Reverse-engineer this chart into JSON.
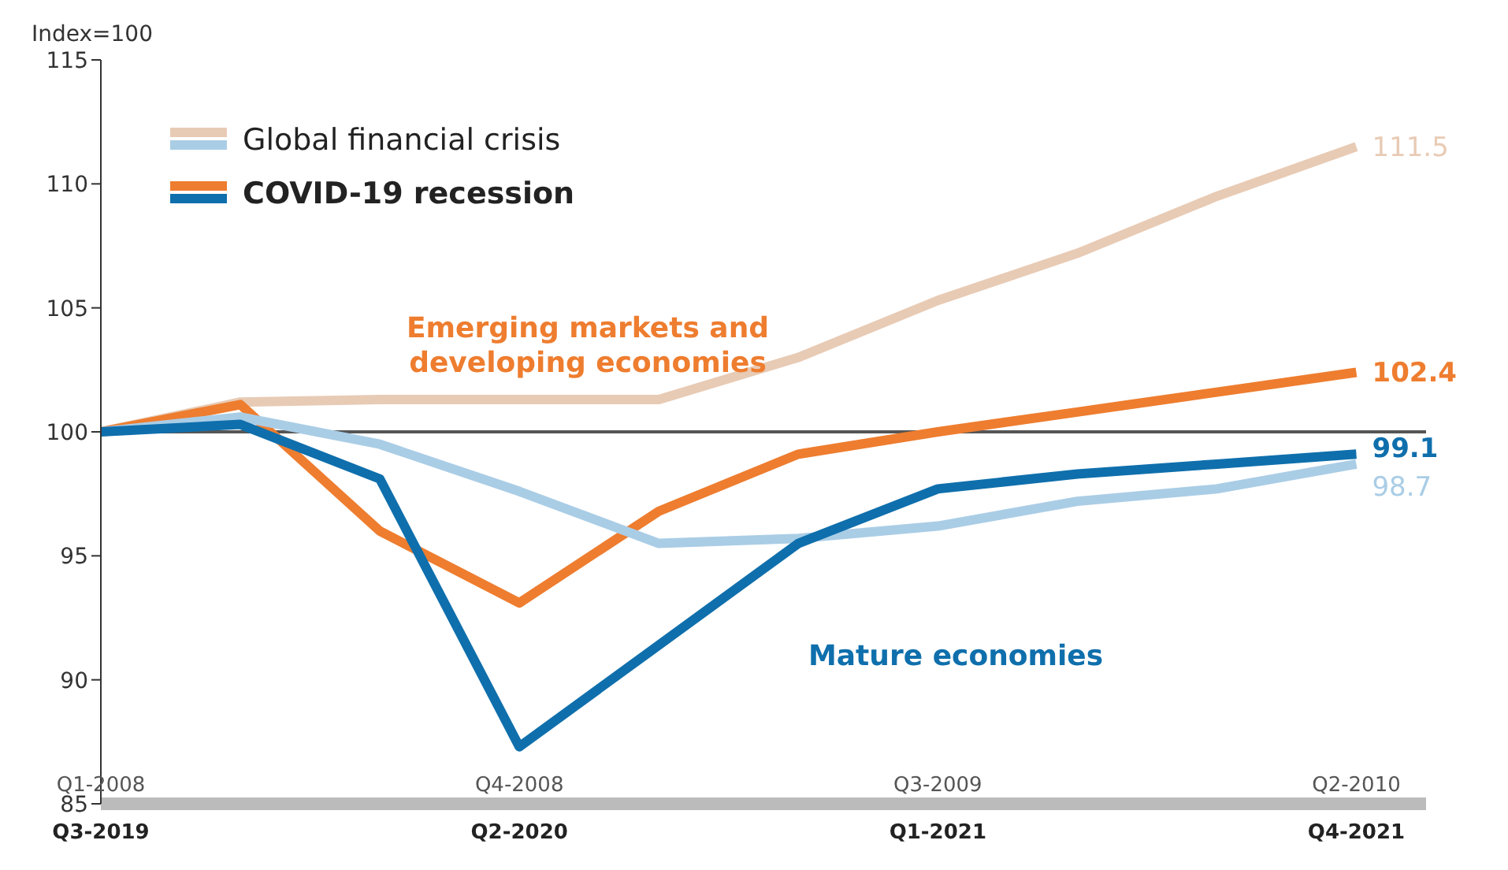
{
  "chart_data": {
    "type": "line",
    "ylabel": "Index=100",
    "categories": [
      "Q3-2019",
      null,
      null,
      "Q2-2020",
      null,
      null,
      "Q1-2021",
      null,
      null,
      "Q4-2021"
    ],
    "series": [
      {
        "name": "Global financial crisis",
        "color": "#e8cbb5",
        "values": [
          100,
          101.2,
          101.3,
          101.3,
          101.3,
          103,
          105.3,
          107.2,
          109.5,
          111.5
        ],
        "value_labels": [
          null,
          null,
          null,
          null,
          null,
          null,
          null,
          null,
          null,
          "111.5"
        ]
      },
      {
        "name": "COVID-19 recession",
        "color": "#ee7d2f",
        "values": [
          100,
          101.1,
          96,
          93.1,
          96.8,
          99.1,
          100,
          100.8,
          101.6,
          102.4
        ],
        "value_labels": [
          null,
          null,
          null,
          null,
          null,
          null,
          null,
          null,
          null,
          "102.4"
        ]
      },
      {
        "color": "#aacde6",
        "values": [
          100,
          100.6,
          99.5,
          97.6,
          95.5,
          95.7,
          96.2,
          97.2,
          97.7,
          98.7
        ],
        "value_labels": [
          null,
          null,
          null,
          null,
          null,
          null,
          null,
          null,
          null,
          "98.7"
        ]
      },
      {
        "color": "#0f6fac",
        "values": [
          100,
          100.3,
          98.1,
          87.3,
          91.4,
          95.5,
          97.7,
          98.3,
          98.7,
          99.1
        ],
        "value_labels": [
          null,
          null,
          null,
          null,
          null,
          null,
          null,
          null,
          null,
          "99.1"
        ]
      }
    ],
    "ylim": [
      85,
      115
    ],
    "yticks": [
      85,
      90,
      95,
      100,
      105,
      110,
      115
    ],
    "grid": false,
    "legend": "top left",
    "marker": "none",
    "line_style": "solid",
    "ref_lines": [
      {
        "axis": "y",
        "value": 100,
        "color": "#555555"
      }
    ],
    "annotations": [
      "Emerging markets and developing economies",
      "Mature economies",
      "Q1-2008",
      "Q4-2008",
      "Q3-2009",
      "Q2-2010"
    ]
  }
}
